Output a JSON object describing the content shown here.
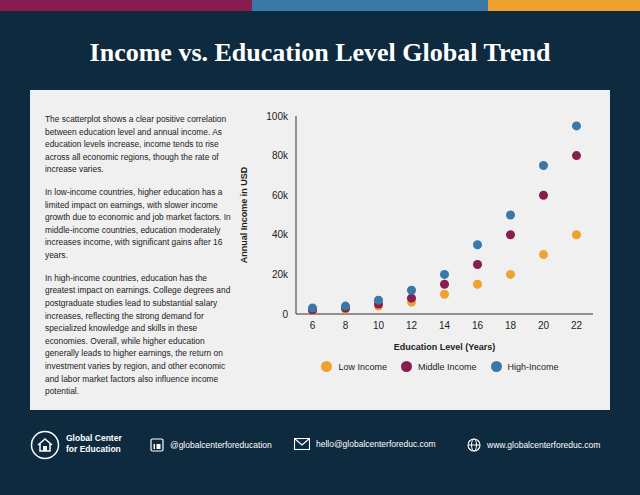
{
  "header": {
    "title": "Income vs. Education Level Global Trend"
  },
  "description": [
    "The scatterplot shows a clear positive correlation between education level and annual income. As education levels increase, income tends to rise across all economic regions, though the rate of increase varies.",
    "In low-income countries, higher education has a limited impact on earnings, with slower income growth due to economic and job market factors. In middle-income countries, education moderately increases income, with significant gains after 16 years.",
    "In high-income countries, education has the greatest impact on earnings. College degrees and postgraduate studies lead to substantial salary increases, reflecting the strong demand for specialized knowledge and skills in these economies. Overall, while higher education generally leads to higher earnings, the return on investment varies by region, and other economic and labor market factors also influence income potential."
  ],
  "chart_data": {
    "type": "scatter",
    "x_label": "Education Level (Years)",
    "y_label": "Annual Income in USD",
    "x": [
      6,
      8,
      10,
      12,
      14,
      16,
      18,
      20,
      22
    ],
    "series": [
      {
        "name": "Low Income",
        "color": "#f0a22e",
        "values": [
          1000,
          2500,
          4000,
          6000,
          10000,
          15000,
          20000,
          30000,
          40000
        ]
      },
      {
        "name": "Middle Income",
        "color": "#8a1d4f",
        "values": [
          2000,
          3000,
          5000,
          8000,
          15000,
          25000,
          40000,
          60000,
          80000
        ]
      },
      {
        "name": "High-Income",
        "color": "#3a78a8",
        "values": [
          3000,
          4000,
          7000,
          12000,
          20000,
          35000,
          50000,
          75000,
          95000
        ]
      }
    ],
    "xlim": [
      5,
      23
    ],
    "xticks": [
      6,
      8,
      10,
      12,
      14,
      16,
      18,
      20,
      22
    ],
    "ylim": [
      0,
      100000
    ],
    "yticks": [
      0,
      {
        "value": 20000,
        "label": "20k"
      },
      {
        "value": 40000,
        "label": "40k"
      },
      {
        "value": 60000,
        "label": "60k"
      },
      {
        "value": 80000,
        "label": "80k"
      },
      {
        "value": 100000,
        "label": "100k"
      }
    ],
    "grid": false,
    "legend": "bottom",
    "marker": "circle"
  },
  "footer": {
    "organization": [
      "Global Center",
      "for Education"
    ],
    "social": "@globalcenterforeducation",
    "email": "hello@globalcenterforeduc.com",
    "website": "www.globalcenterforeduc.com"
  }
}
